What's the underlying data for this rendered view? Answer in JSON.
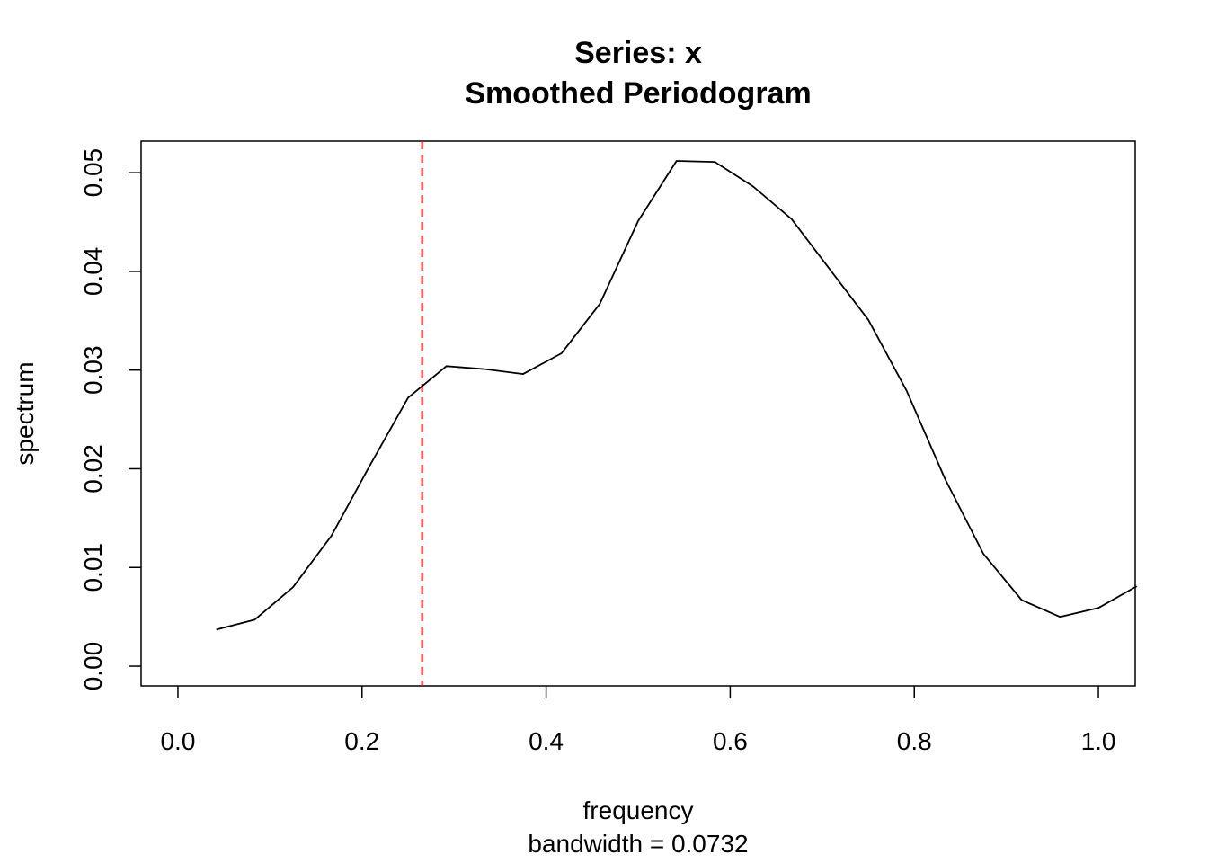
{
  "chart_data": {
    "type": "line",
    "title": "Series: x",
    "subtitle": "Smoothed Periodogram",
    "xlabel": "frequency",
    "xsublabel": "bandwidth = 0.0732",
    "ylabel": "spectrum",
    "xlim": [
      -0.04,
      1.04
    ],
    "ylim": [
      -0.002,
      0.0532
    ],
    "x_ticks": [
      "0.0",
      "0.2",
      "0.4",
      "0.6",
      "0.8",
      "1.0"
    ],
    "y_ticks": [
      "0.00",
      "0.01",
      "0.02",
      "0.03",
      "0.04",
      "0.05"
    ],
    "grid": false,
    "legend": "none",
    "series": [
      {
        "x": [
          0.0417,
          0.0833,
          0.125,
          0.1667,
          0.2083,
          0.25,
          0.2917,
          0.3333,
          0.375,
          0.4167,
          0.4583,
          0.5,
          0.5417,
          0.5833,
          0.625,
          0.6667,
          0.7083,
          0.75,
          0.7917,
          0.8333,
          0.875,
          0.9167,
          0.9583,
          1.0,
          1.0417
        ],
        "values": [
          0.0037,
          0.0047,
          0.008,
          0.0132,
          0.0203,
          0.0272,
          0.0304,
          0.0301,
          0.0296,
          0.0317,
          0.0367,
          0.0451,
          0.0512,
          0.0511,
          0.0486,
          0.0453,
          0.0402,
          0.0351,
          0.0279,
          0.019,
          0.0114,
          0.0067,
          0.005,
          0.0059,
          0.0081
        ],
        "color": "#000000"
      }
    ],
    "bandwidth_marker": {
      "x": 0.2653,
      "color": "#ff0000",
      "style": "dashed"
    }
  }
}
